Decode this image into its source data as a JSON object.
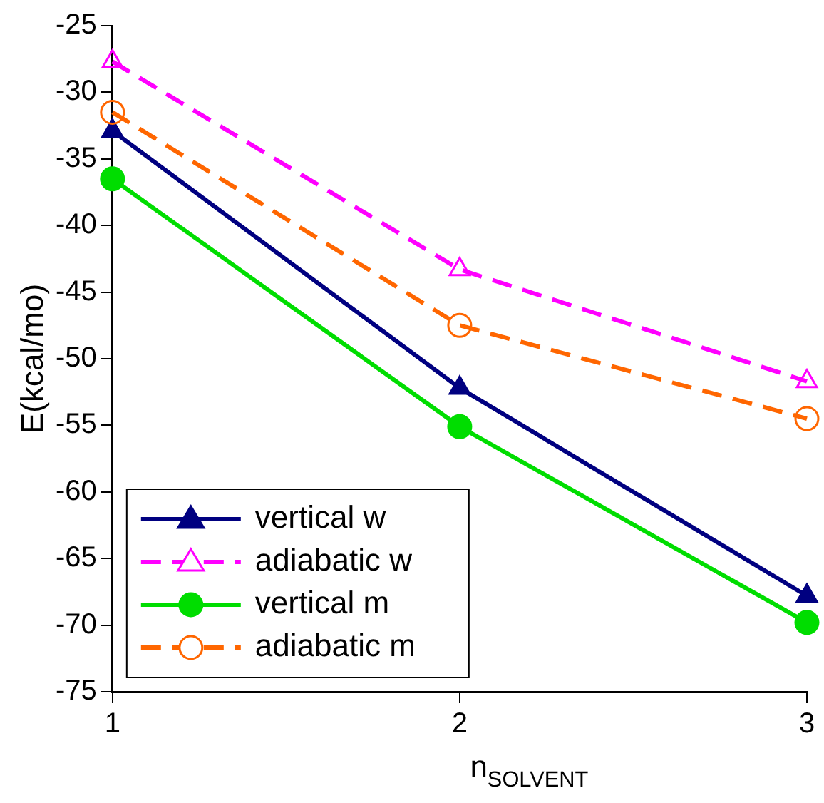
{
  "chart_data": {
    "type": "line",
    "xlabel": "n$_{SOLVENT}$",
    "ylabel": "E(kcal/mo)",
    "x": [
      1,
      2,
      3
    ],
    "xlim": [
      1,
      3
    ],
    "xticks": [
      1,
      2,
      3
    ],
    "ylim": [
      -75,
      -25
    ],
    "yticks": [
      -75,
      -70,
      -65,
      -60,
      -55,
      -50,
      -45,
      -40,
      -35,
      -30,
      -25
    ],
    "grid": false,
    "legend": "bottom left",
    "series": [
      {
        "name": "vertical w",
        "color": "#000080",
        "values": [
          -32.9,
          -52.2,
          -67.8
        ],
        "marker": "triangle",
        "line_style": "solid"
      },
      {
        "name": "adiabatic w",
        "color": "#ff00ff",
        "values": [
          -27.7,
          -43.3,
          -51.7
        ],
        "marker": "triangle",
        "line_style": "dashed"
      },
      {
        "name": "vertical m",
        "color": "#00dd00",
        "values": [
          -36.5,
          -55.1,
          -69.8
        ],
        "marker": "circle",
        "line_style": "solid"
      },
      {
        "name": "adiabatic m",
        "color": "#ff6600",
        "values": [
          -31.5,
          -47.5,
          -54.5
        ],
        "marker": "circle",
        "line_style": "dashed"
      }
    ]
  }
}
